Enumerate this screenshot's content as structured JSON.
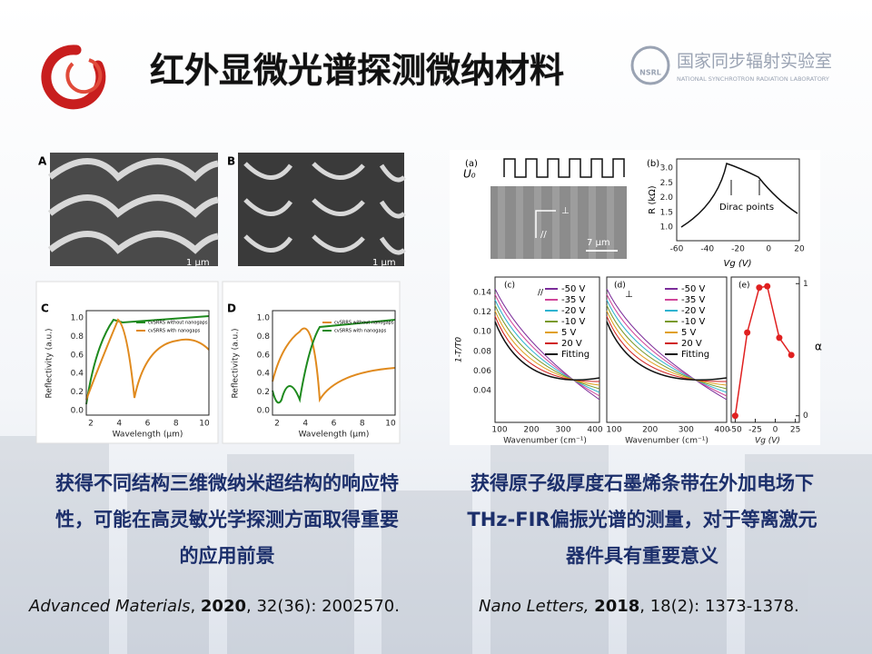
{
  "header": {
    "title": "红外显微光谱探测微纳材料",
    "logo_text": "NSRL",
    "institute_cn": "国家同步辐射实验室",
    "institute_en": "NATIONAL SYNCHROTRON RADIATION LABORATORY"
  },
  "left": {
    "figure": {
      "panels": [
        "A",
        "B",
        "C",
        "D"
      ],
      "scale_bar": "1 μm",
      "c": {
        "y_label": "Reflectivity (a.u.)",
        "x_label": "Wavelength (μm)",
        "yticks": [
          "0.0",
          "0.2",
          "0.4",
          "0.6",
          "0.8",
          "1.0"
        ],
        "xticks": [
          "2",
          "4",
          "6",
          "8",
          "10"
        ],
        "legend": [
          {
            "name": "cvSRRS without nanogaps",
            "color": "#1e8a1e"
          },
          {
            "name": "cvSRRS with nanogaps",
            "color": "#e08a1e"
          }
        ]
      },
      "d": {
        "y_label": "Reflectivity (a.u.)",
        "x_label": "Wavelength (μm)",
        "yticks": [
          "0.0",
          "0.2",
          "0.4",
          "0.6",
          "0.8",
          "1.0"
        ],
        "xticks": [
          "2",
          "4",
          "6",
          "8",
          "10"
        ],
        "legend": [
          {
            "name": "cvSRRS without nanogaps",
            "color": "#e08a1e"
          },
          {
            "name": "cvSRRS with nanogaps",
            "color": "#1e8a1e"
          }
        ]
      }
    },
    "caption_lines": [
      "获得不同结构三维微纳米超结构的响应特",
      "性，可能在高灵敏光学探测方面取得重要",
      "的应用前景"
    ],
    "citation": {
      "journal": "Advanced Materials",
      "sep": ", ",
      "year": "2020",
      "detail": ", 32(36): 2002570."
    }
  },
  "right": {
    "figure": {
      "a": {
        "label": "(a)",
        "signal": "U₀",
        "perp": "⊥",
        "parallel": "//",
        "scale_bar": "7 μm"
      },
      "b": {
        "label": "(b)",
        "y_label": "R (kΩ)",
        "x_label": "Vg (V)",
        "annotation": "Dirac points",
        "yticks": [
          "1.0",
          "1.5",
          "2.0",
          "2.5",
          "3.0"
        ],
        "xticks": [
          "-60",
          "-40",
          "-20",
          "0",
          "20"
        ]
      },
      "c": {
        "label": "(c)",
        "polarization": "//",
        "y_label": "1-T/T0",
        "x_label": "Wavenumber (cm⁻¹)",
        "yticks": [
          "0.04",
          "0.06",
          "0.08",
          "0.10",
          "0.12",
          "0.14"
        ],
        "xticks": [
          "100",
          "200",
          "300",
          "400"
        ]
      },
      "d": {
        "label": "(d)",
        "polarization": "⊥",
        "x_label": "Wavenumber (cm⁻¹)",
        "xticks": [
          "100",
          "200",
          "300",
          "400"
        ]
      },
      "legend": [
        {
          "name": "-50 V",
          "color": "#7b2d9a"
        },
        {
          "name": "-35 V",
          "color": "#d0459a"
        },
        {
          "name": "-20 V",
          "color": "#2fb3d0"
        },
        {
          "name": "-10 V",
          "color": "#7a9a2a"
        },
        {
          "name": "5 V",
          "color": "#e0a020"
        },
        {
          "name": "20 V",
          "color": "#d02020"
        },
        {
          "name": "Fitting",
          "color": "#111111"
        }
      ],
      "e": {
        "label": "(e)",
        "y_label": "α",
        "x_label": "Vg (V)",
        "xticks": [
          -50,
          -25,
          0,
          25
        ],
        "yticks": [
          0,
          1
        ],
        "xlim": [
          -55,
          30
        ],
        "ylim": [
          -0.05,
          1.05
        ],
        "color": "#e02020",
        "x": [
          -50,
          -35,
          -20,
          -10,
          5,
          20
        ],
        "values": [
          0,
          0.63,
          0.97,
          0.98,
          0.59,
          0.46
        ]
      }
    },
    "caption_lines": [
      "获得原子级厚度石墨烯条带在外加电场下",
      "THz-FIR偏振光谱的测量，对于等离激元",
      "器件具有重要意义"
    ],
    "citation": {
      "journal": "Nano Letters,",
      "sep": " ",
      "year": "2018",
      "detail": ", 18(2): 1373-1378."
    }
  }
}
